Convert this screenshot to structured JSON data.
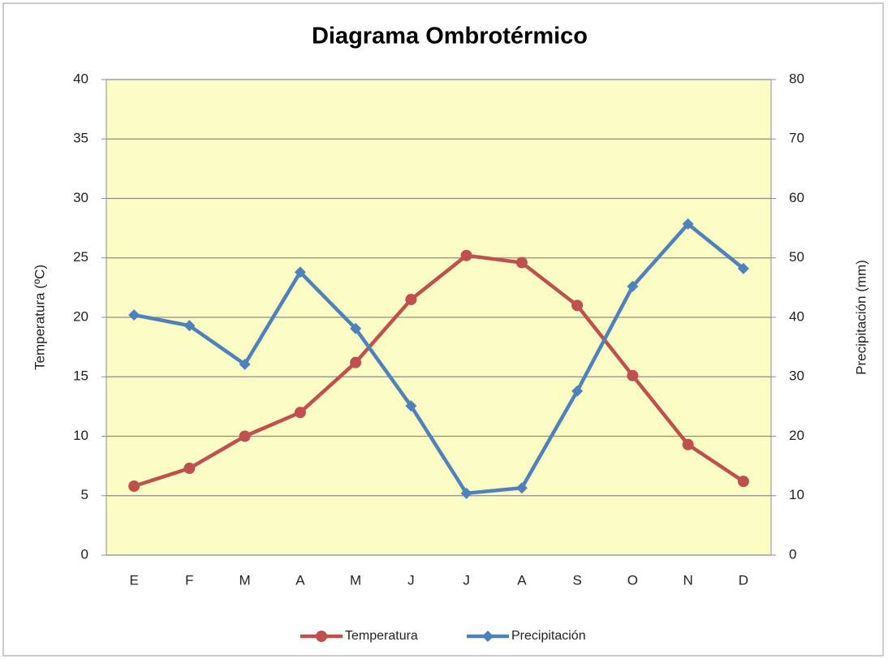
{
  "chart_data": {
    "type": "line",
    "title": "Diagrama Ombrotérmico",
    "y_label": "Temperatura (ºC)",
    "y2_label": "Precipitación (mm)",
    "categories": [
      "E",
      "F",
      "M",
      "A",
      "M",
      "J",
      "J",
      "A",
      "S",
      "O",
      "N",
      "D"
    ],
    "series": [
      {
        "name": "Temperatura",
        "color": "#c0504d",
        "marker": "circle",
        "values": [
          5.8,
          7.3,
          10.0,
          12.0,
          16.2,
          21.5,
          25.2,
          24.6,
          21.0,
          15.1,
          9.3,
          6.2
        ]
      },
      {
        "name": "Precipitación",
        "color": "#4f81bd",
        "marker": "diamond",
        "axis": "y2",
        "values": [
          40.4,
          38.6,
          32.1,
          47.6,
          38.1,
          25.1,
          10.4,
          11.3,
          27.6,
          45.2,
          55.7,
          48.2
        ]
      }
    ],
    "ylim": [
      0,
      40
    ],
    "yticks": [
      0,
      5,
      10,
      15,
      20,
      25,
      30,
      35,
      40
    ],
    "y2lim": [
      0,
      80
    ],
    "y2ticks": [
      0,
      10,
      20,
      30,
      40,
      50,
      60,
      70,
      80
    ],
    "grid": true,
    "plot_background": "#fbfbc4",
    "legend": "bottom"
  }
}
